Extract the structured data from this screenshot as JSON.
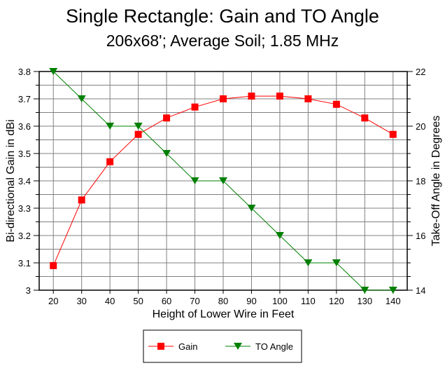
{
  "chart_data": {
    "type": "line",
    "title": "Single Rectangle:  Gain and TO Angle",
    "subtitle": "206x68'; Average Soil; 1.85 MHz",
    "xlabel": "Height of Lower Wire in Feet",
    "ylabel": "Bi-directional Gain in dBi",
    "y2label": "Take-Off Angle in Degrees",
    "x": [
      20,
      30,
      40,
      50,
      60,
      70,
      80,
      90,
      100,
      110,
      120,
      130,
      140
    ],
    "xticks": [
      "20",
      "30",
      "40",
      "50",
      "60",
      "70",
      "80",
      "90",
      "100",
      "110",
      "120",
      "130",
      "140"
    ],
    "ylim": [
      3,
      3.8
    ],
    "yticks": [
      "3",
      "3.1",
      "3.2",
      "3.3",
      "3.4",
      "3.5",
      "3.6",
      "3.7",
      "3.8"
    ],
    "y2lim": [
      14,
      22
    ],
    "y2ticks": [
      "14",
      "16",
      "18",
      "20",
      "22"
    ],
    "grid": true,
    "legend_position": "bottom",
    "series": [
      {
        "name": "Gain",
        "axis": "left",
        "color": "#ff0000",
        "marker": "square",
        "values": [
          3.09,
          3.33,
          3.47,
          3.57,
          3.63,
          3.67,
          3.7,
          3.71,
          3.71,
          3.7,
          3.68,
          3.63,
          3.57
        ]
      },
      {
        "name": "TO Angle",
        "axis": "right",
        "color": "#008000",
        "marker": "triangle-down",
        "values": [
          22,
          21,
          20,
          20,
          19,
          18,
          18,
          17,
          16,
          15,
          15,
          14,
          14
        ]
      }
    ]
  }
}
